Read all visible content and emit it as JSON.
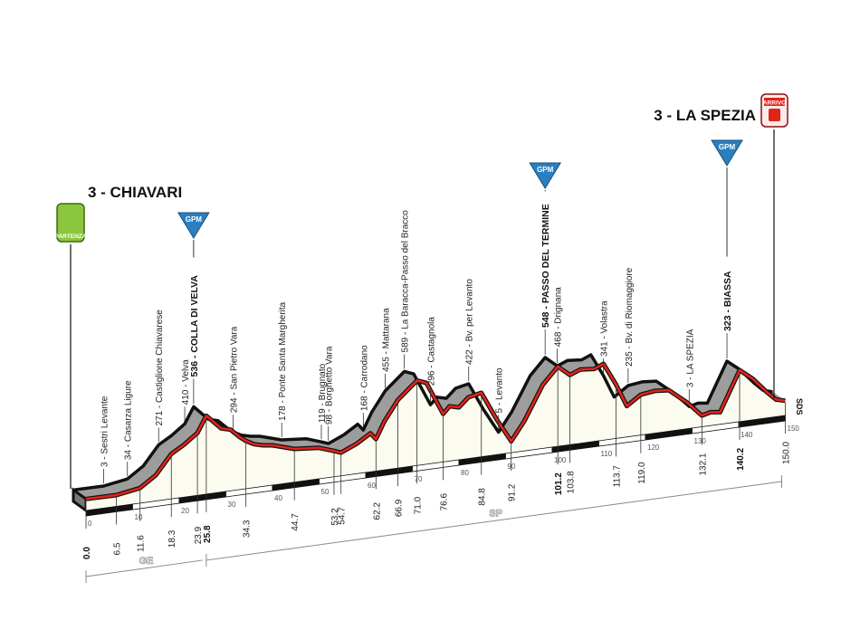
{
  "start": {
    "label": "3 - CHIAVARI",
    "badge": "PARTENZA",
    "badge_color": "#8cc63f"
  },
  "finish": {
    "label": "3 - LA SPEZIA",
    "badge": "ARRIVO",
    "badge_color": "#e2231a"
  },
  "gpm_label": "GPM",
  "gpm_color": "#2a7fc0",
  "sds_label": "SDS",
  "chart_data": {
    "type": "area",
    "xlabel": "",
    "ylabel": "",
    "xlim": [
      0,
      150
    ],
    "profile": [
      [
        0,
        5
      ],
      [
        6.5,
        3
      ],
      [
        11.6,
        34
      ],
      [
        15,
        120
      ],
      [
        18.3,
        271
      ],
      [
        21,
        330
      ],
      [
        23.9,
        410
      ],
      [
        25.8,
        536
      ],
      [
        29,
        420
      ],
      [
        31,
        400
      ],
      [
        33,
        330
      ],
      [
        34.3,
        294
      ],
      [
        36,
        260
      ],
      [
        38,
        240
      ],
      [
        40,
        230
      ],
      [
        44.7,
        178
      ],
      [
        50,
        160
      ],
      [
        53.2,
        119
      ],
      [
        54.7,
        98
      ],
      [
        58,
        150
      ],
      [
        61,
        220
      ],
      [
        62.2,
        168
      ],
      [
        64,
        300
      ],
      [
        66.9,
        455
      ],
      [
        71.0,
        589
      ],
      [
        73,
        560
      ],
      [
        76.6,
        296
      ],
      [
        78,
        350
      ],
      [
        80,
        330
      ],
      [
        82,
        400
      ],
      [
        84.8,
        422
      ],
      [
        88,
        200
      ],
      [
        91.2,
        5
      ],
      [
        94,
        150
      ],
      [
        98,
        420
      ],
      [
        101.2,
        548
      ],
      [
        103.8,
        468
      ],
      [
        106,
        500
      ],
      [
        109,
        490
      ],
      [
        111,
        520
      ],
      [
        113.7,
        341
      ],
      [
        116,
        160
      ],
      [
        119,
        235
      ],
      [
        122,
        250
      ],
      [
        125,
        240
      ],
      [
        129,
        120
      ],
      [
        132.1,
        3
      ],
      [
        134,
        20
      ],
      [
        136,
        10
      ],
      [
        140.2,
        323
      ],
      [
        143,
        240
      ],
      [
        146,
        120
      ],
      [
        148,
        50
      ],
      [
        150,
        30
      ]
    ],
    "km_ticks": [
      0,
      10,
      20,
      30,
      40,
      50,
      60,
      70,
      80,
      90,
      100,
      110,
      120,
      130,
      140,
      150
    ],
    "km_tick_labels": [
      "0",
      "10",
      "20",
      "30",
      "40",
      "50",
      "60",
      "70",
      "80",
      "90",
      "100",
      "110",
      "120",
      "130",
      "140",
      "150"
    ],
    "points": [
      {
        "km": "0.0",
        "km_value": 0,
        "place": "",
        "bold": true
      },
      {
        "km": "6.5",
        "km_value": 6.5,
        "place": "3 - Sestri Levante"
      },
      {
        "km": "11.6",
        "km_value": 11.6,
        "place": "34 - Casarza Ligure"
      },
      {
        "km": "18.3",
        "km_value": 18.3,
        "place": "271 - Castiglione Chiavarese"
      },
      {
        "km": "23.9",
        "km_value": 23.9,
        "place": "410 - Velva"
      },
      {
        "km": "25.8",
        "km_value": 25.8,
        "place": "536 - COLLA DI VELVA",
        "bold": true,
        "gpm": true
      },
      {
        "km": "34.3",
        "km_value": 34.3,
        "place": "294 - San Pietro Vara"
      },
      {
        "km": "44.7",
        "km_value": 44.7,
        "place": "178 - Ponte Santa Margherita"
      },
      {
        "km": "53.2",
        "km_value": 53.2,
        "place": "119 - Brugnato"
      },
      {
        "km": "54.7",
        "km_value": 54.7,
        "place": "98 - Borghetto Vara"
      },
      {
        "km": "62.2",
        "km_value": 62.2,
        "place": "168 - Carrodano"
      },
      {
        "km": "66.9",
        "km_value": 66.9,
        "place": "455 - Mattarana"
      },
      {
        "km": "71.0",
        "km_value": 71.0,
        "place": "589 - La Baracca-Passo del Bracco"
      },
      {
        "km": "76.6",
        "km_value": 76.6,
        "place": "296 - Castagnola"
      },
      {
        "km": "84.8",
        "km_value": 84.8,
        "place": "422 - Bv. per Levanto"
      },
      {
        "km": "91.2",
        "km_value": 91.2,
        "place": "5 - Levanto"
      },
      {
        "km": "101.2",
        "km_value": 101.2,
        "place": "548 - PASSO DEL TERMINE",
        "bold": true,
        "gpm": true
      },
      {
        "km": "103.8",
        "km_value": 103.8,
        "place": "468 - Drignana"
      },
      {
        "km": "113.7",
        "km_value": 113.7,
        "place": "341 - Volastra"
      },
      {
        "km": "119.0",
        "km_value": 119.0,
        "place": "235 - Bv. di Riomaggiore"
      },
      {
        "km": "132.1",
        "km_value": 132.1,
        "place": "3 - LA SPEZIA"
      },
      {
        "km": "140.2",
        "km_value": 140.2,
        "place": "323 - BIASSA",
        "bold": true,
        "gpm": true
      },
      {
        "km": "150.0",
        "km_value": 150.0,
        "place": ""
      }
    ],
    "provinces": [
      {
        "label": "GE",
        "from": 0,
        "to": 25.8
      },
      {
        "label": "SP",
        "from": 25.8,
        "to": 150
      }
    ],
    "colors": {
      "line": "#e2231a",
      "top_face": "#9d9d9d",
      "front_face": "#fbfbef",
      "outline": "#111111"
    }
  }
}
